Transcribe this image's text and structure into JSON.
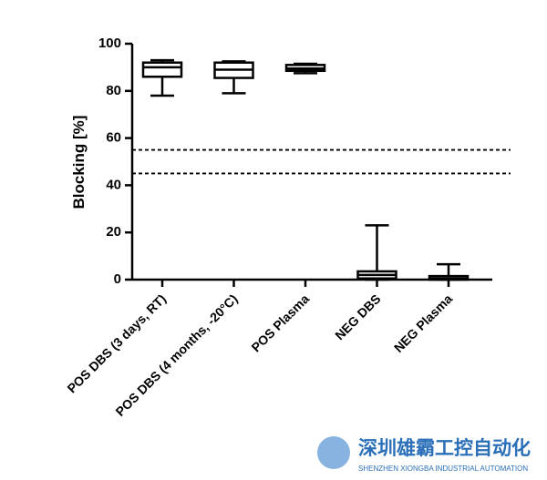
{
  "chart_data": {
    "type": "box",
    "y_label": "Blocking [%]",
    "categories": [
      "POS DBS (3 days, RT)",
      "POS DBS (4 months, -20°C)",
      "POS Plasma",
      "NEG DBS",
      "NEG Plasma"
    ],
    "boxes": [
      {
        "min": 78,
        "q1": 86,
        "median": 90,
        "q3": 92,
        "max": 93
      },
      {
        "min": 79,
        "q1": 85.5,
        "median": 89,
        "q3": 92,
        "max": 92.5
      },
      {
        "min": 87.5,
        "q1": 88.5,
        "median": 89.5,
        "q3": 91,
        "max": 91.5
      },
      {
        "min": 0,
        "q1": 0.5,
        "median": 2,
        "q3": 3.5,
        "max": 23
      },
      {
        "min": 0,
        "q1": 0,
        "median": 0.5,
        "q3": 1.5,
        "max": 6.5
      }
    ],
    "color": "#000000",
    "reference_lines": [
      55,
      45
    ],
    "ylim": [
      0,
      100
    ],
    "yticks": [
      0,
      20,
      40,
      60,
      80,
      100
    ]
  },
  "watermark": {
    "title": "深圳雄霸工控自动化",
    "subtitle": "SHENZHEN XIONGBA INDUSTRIAL AUTOMATION"
  }
}
